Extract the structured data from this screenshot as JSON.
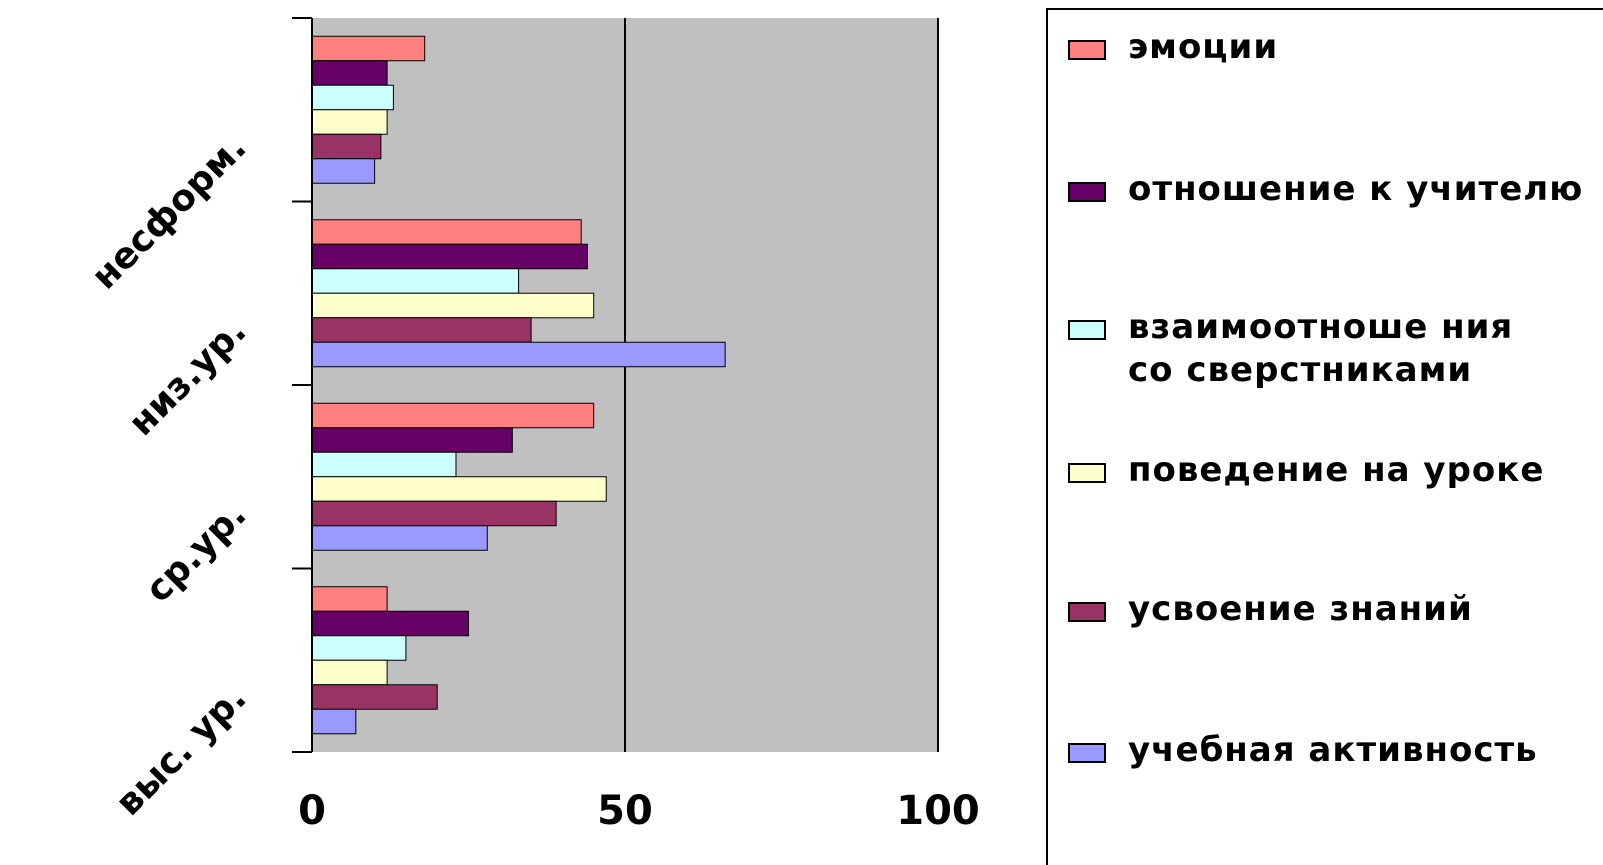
{
  "chart_data": {
    "type": "bar",
    "orientation": "horizontal",
    "categories": [
      "несформ.",
      "низ.ур.",
      "ср.ур.",
      "выс. ур."
    ],
    "xlim": [
      0,
      100
    ],
    "x_ticks": [
      "0",
      "50",
      "100"
    ],
    "x_tick_values": [
      0,
      50,
      100
    ],
    "grid": "vertical lines at major ticks",
    "plot_background": "#c0c0c0",
    "legend_position": "right",
    "series": [
      {
        "name": "эмоции",
        "color": "#ff8080",
        "values": [
          18,
          43,
          45,
          12
        ]
      },
      {
        "name": "отношение к учителю",
        "color": "#660066",
        "values": [
          12,
          44,
          32,
          25
        ]
      },
      {
        "name": "взаимоотношения со сверстниками",
        "color": "#ccffff",
        "values": [
          13,
          33,
          23,
          15
        ]
      },
      {
        "name": "поведение на уроке",
        "color": "#ffffcc",
        "values": [
          12,
          45,
          47,
          12
        ]
      },
      {
        "name": "усвоение знаний",
        "color": "#993366",
        "values": [
          11,
          35,
          39,
          20
        ]
      },
      {
        "name": "учебная активность",
        "color": "#9999ff",
        "values": [
          10,
          66,
          28,
          7
        ]
      }
    ]
  },
  "legend": {
    "items": [
      {
        "label": "эмоции"
      },
      {
        "label": "отношение к учителю"
      },
      {
        "label": "взаимоотноше ния со сверстниками"
      },
      {
        "label": "поведение на уроке"
      },
      {
        "label": "усвоение знаний"
      },
      {
        "label": "учебная активность"
      }
    ]
  }
}
